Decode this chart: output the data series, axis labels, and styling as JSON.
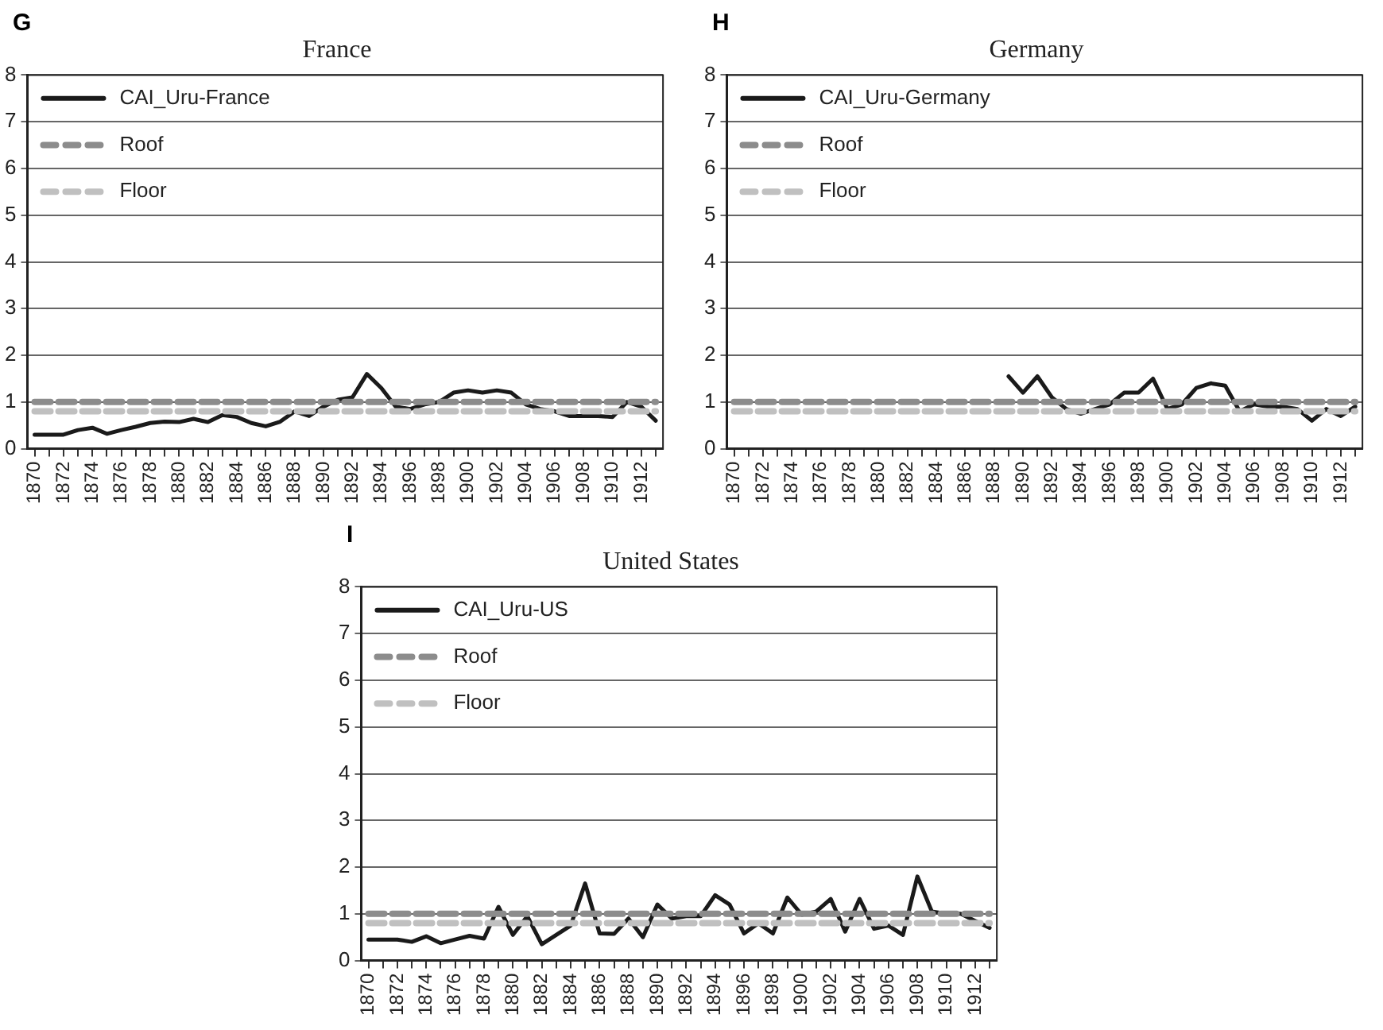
{
  "chart_data": [
    {
      "type": "line",
      "title": "France",
      "annotations": [
        "G"
      ],
      "categories": [
        "1870",
        null,
        "1872",
        null,
        "1874",
        null,
        "1876",
        null,
        "1878",
        null,
        "1880",
        null,
        "1882",
        null,
        "1884",
        null,
        "1886",
        null,
        "1888",
        null,
        "1890",
        null,
        "1892",
        null,
        "1894",
        null,
        "1896",
        null,
        "1898",
        null,
        "1900",
        null,
        "1902",
        null,
        "1904",
        null,
        "1906",
        null,
        "1908",
        null,
        "1910",
        null,
        "1912",
        null
      ],
      "series": [
        {
          "name": "CAI_Uru-France",
          "color": "#1a1a1a",
          "line_style": "solid",
          "values": [
            0.3,
            0.3,
            0.3,
            0.4,
            0.45,
            0.32,
            0.4,
            0.47,
            0.55,
            0.58,
            0.57,
            0.64,
            0.57,
            0.72,
            0.68,
            0.55,
            0.48,
            0.58,
            0.8,
            0.7,
            0.9,
            1.05,
            1.1,
            1.6,
            1.3,
            0.9,
            0.85,
            0.95,
            1.0,
            1.2,
            1.25,
            1.2,
            1.25,
            1.2,
            0.95,
            0.85,
            0.8,
            0.7,
            0.7,
            0.7,
            0.68,
            1.0,
            0.9,
            0.6
          ]
        },
        {
          "name": "Roof",
          "color": "#8c8c8c",
          "line_style": "dashed",
          "values": [
            1,
            1,
            1,
            1,
            1,
            1,
            1,
            1,
            1,
            1,
            1,
            1,
            1,
            1,
            1,
            1,
            1,
            1,
            1,
            1,
            1,
            1,
            1,
            1,
            1,
            1,
            1,
            1,
            1,
            1,
            1,
            1,
            1,
            1,
            1,
            1,
            1,
            1,
            1,
            1,
            1,
            1,
            1,
            1
          ]
        },
        {
          "name": "Floor",
          "color": "#c0c0c0",
          "line_style": "dashed",
          "values": [
            0.8,
            0.8,
            0.8,
            0.8,
            0.8,
            0.8,
            0.8,
            0.8,
            0.8,
            0.8,
            0.8,
            0.8,
            0.8,
            0.8,
            0.8,
            0.8,
            0.8,
            0.8,
            0.8,
            0.8,
            0.8,
            0.8,
            0.8,
            0.8,
            0.8,
            0.8,
            0.8,
            0.8,
            0.8,
            0.8,
            0.8,
            0.8,
            0.8,
            0.8,
            0.8,
            0.8,
            0.8,
            0.8,
            0.8,
            0.8,
            0.8,
            0.8,
            0.8,
            0.8
          ]
        }
      ],
      "ylim": [
        0,
        8
      ],
      "yticks": [
        0,
        1,
        2,
        3,
        4,
        5,
        6,
        7,
        8
      ],
      "grid": "y",
      "legend": "top left",
      "marker": "none"
    },
    {
      "type": "line",
      "title": "Germany",
      "annotations": [
        "H"
      ],
      "categories": [
        "1870",
        null,
        "1872",
        null,
        "1874",
        null,
        "1876",
        null,
        "1878",
        null,
        "1880",
        null,
        "1882",
        null,
        "1884",
        null,
        "1886",
        null,
        "1888",
        null,
        "1890",
        null,
        "1892",
        null,
        "1894",
        null,
        "1896",
        null,
        "1898",
        null,
        "1900",
        null,
        "1902",
        null,
        "1904",
        null,
        "1906",
        null,
        "1908",
        null,
        "1910",
        null,
        "1912",
        null
      ],
      "series": [
        {
          "name": "CAI_Uru-Germany",
          "color": "#1a1a1a",
          "line_style": "solid",
          "values": [
            null,
            null,
            null,
            null,
            null,
            null,
            null,
            null,
            null,
            null,
            null,
            null,
            null,
            null,
            null,
            null,
            null,
            null,
            null,
            1.55,
            1.2,
            1.55,
            1.1,
            0.85,
            0.75,
            0.85,
            0.95,
            1.2,
            1.2,
            1.5,
            0.85,
            0.95,
            1.3,
            1.4,
            1.35,
            0.8,
            0.95,
            0.9,
            0.9,
            0.85,
            0.6,
            0.85,
            0.7,
            0.9
          ]
        },
        {
          "name": "Roof",
          "color": "#8c8c8c",
          "line_style": "dashed",
          "values": [
            1,
            1,
            1,
            1,
            1,
            1,
            1,
            1,
            1,
            1,
            1,
            1,
            1,
            1,
            1,
            1,
            1,
            1,
            1,
            1,
            1,
            1,
            1,
            1,
            1,
            1,
            1,
            1,
            1,
            1,
            1,
            1,
            1,
            1,
            1,
            1,
            1,
            1,
            1,
            1,
            1,
            1,
            1,
            1
          ]
        },
        {
          "name": "Floor",
          "color": "#c0c0c0",
          "line_style": "dashed",
          "values": [
            0.8,
            0.8,
            0.8,
            0.8,
            0.8,
            0.8,
            0.8,
            0.8,
            0.8,
            0.8,
            0.8,
            0.8,
            0.8,
            0.8,
            0.8,
            0.8,
            0.8,
            0.8,
            0.8,
            0.8,
            0.8,
            0.8,
            0.8,
            0.8,
            0.8,
            0.8,
            0.8,
            0.8,
            0.8,
            0.8,
            0.8,
            0.8,
            0.8,
            0.8,
            0.8,
            0.8,
            0.8,
            0.8,
            0.8,
            0.8,
            0.8,
            0.8,
            0.8,
            0.8
          ]
        }
      ],
      "ylim": [
        0,
        8
      ],
      "yticks": [
        0,
        1,
        2,
        3,
        4,
        5,
        6,
        7,
        8
      ],
      "grid": "y",
      "legend": "top left",
      "marker": "none"
    },
    {
      "type": "line",
      "title": "United States",
      "annotations": [
        "I"
      ],
      "categories": [
        "1870",
        null,
        "1872",
        null,
        "1874",
        null,
        "1876",
        null,
        "1878",
        null,
        "1880",
        null,
        "1882",
        null,
        "1884",
        null,
        "1886",
        null,
        "1888",
        null,
        "1890",
        null,
        "1892",
        null,
        "1894",
        null,
        "1896",
        null,
        "1898",
        null,
        "1900",
        null,
        "1902",
        null,
        "1904",
        null,
        "1906",
        null,
        "1908",
        null,
        "1910",
        null,
        "1912",
        null
      ],
      "series": [
        {
          "name": "CAI_Uru-US",
          "color": "#1a1a1a",
          "line_style": "solid",
          "values": [
            0.45,
            0.45,
            0.45,
            0.4,
            0.52,
            0.37,
            0.45,
            0.53,
            0.47,
            1.15,
            0.55,
            0.95,
            0.35,
            0.55,
            0.75,
            1.65,
            0.58,
            0.57,
            0.9,
            0.5,
            1.2,
            0.9,
            0.95,
            0.95,
            1.4,
            1.2,
            0.58,
            0.8,
            0.58,
            1.35,
            0.98,
            1.05,
            1.32,
            0.62,
            1.32,
            0.68,
            0.75,
            0.55,
            1.8,
            1.05,
            1.0,
            1.0,
            0.85,
            0.7
          ]
        },
        {
          "name": "Roof",
          "color": "#8c8c8c",
          "line_style": "dashed",
          "values": [
            1,
            1,
            1,
            1,
            1,
            1,
            1,
            1,
            1,
            1,
            1,
            1,
            1,
            1,
            1,
            1,
            1,
            1,
            1,
            1,
            1,
            1,
            1,
            1,
            1,
            1,
            1,
            1,
            1,
            1,
            1,
            1,
            1,
            1,
            1,
            1,
            1,
            1,
            1,
            1,
            1,
            1,
            1,
            1
          ]
        },
        {
          "name": "Floor",
          "color": "#c0c0c0",
          "line_style": "dashed",
          "values": [
            0.8,
            0.8,
            0.8,
            0.8,
            0.8,
            0.8,
            0.8,
            0.8,
            0.8,
            0.8,
            0.8,
            0.8,
            0.8,
            0.8,
            0.8,
            0.8,
            0.8,
            0.8,
            0.8,
            0.8,
            0.8,
            0.8,
            0.8,
            0.8,
            0.8,
            0.8,
            0.8,
            0.8,
            0.8,
            0.8,
            0.8,
            0.8,
            0.8,
            0.8,
            0.8,
            0.8,
            0.8,
            0.8,
            0.8,
            0.8,
            0.8,
            0.8,
            0.8,
            0.8
          ]
        }
      ],
      "ylim": [
        0,
        8
      ],
      "yticks": [
        0,
        1,
        2,
        3,
        4,
        5,
        6,
        7,
        8
      ],
      "grid": "y",
      "legend": "top left",
      "marker": "none"
    }
  ]
}
